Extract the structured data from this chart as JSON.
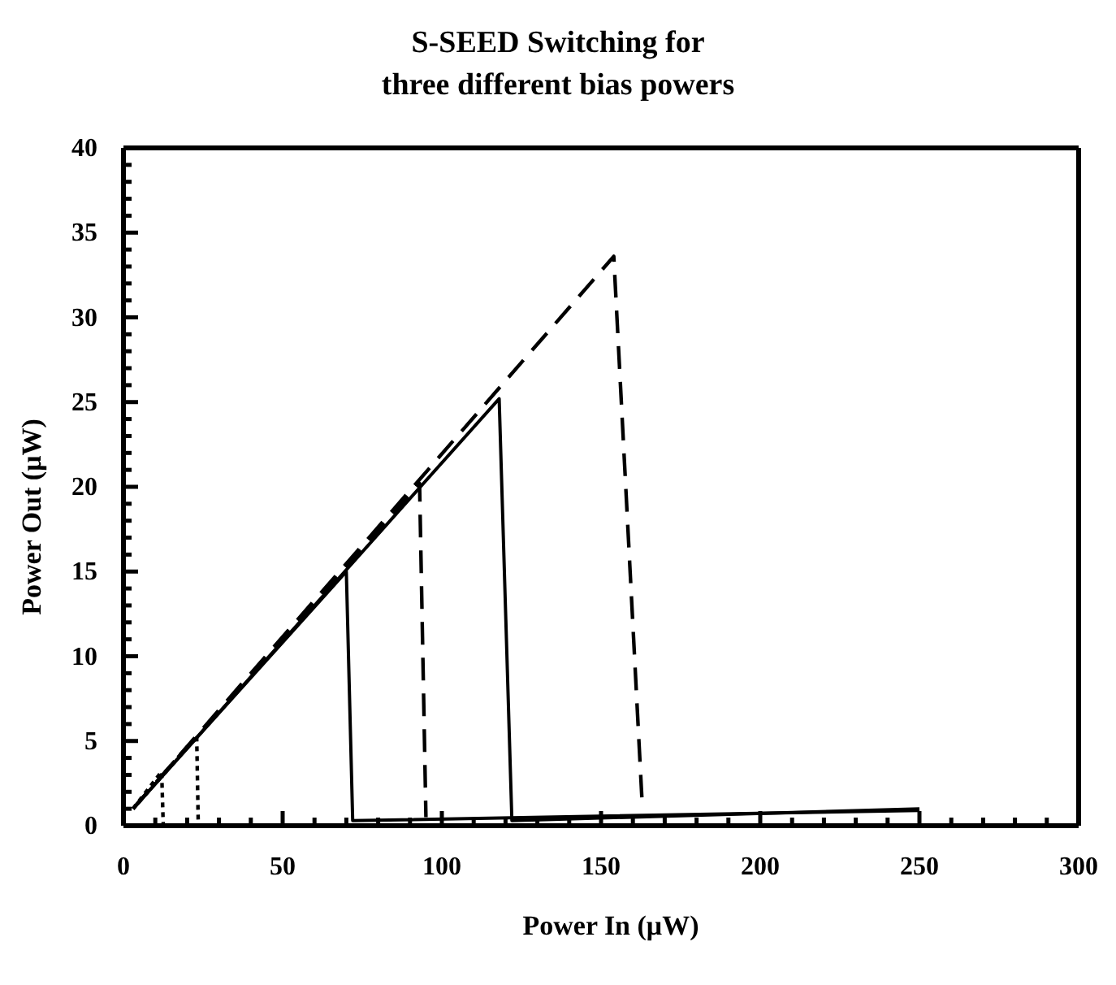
{
  "chart_data": {
    "type": "line",
    "title": "S-SEED Switching for\nthree different bias powers",
    "xlabel": "Power In (μW)",
    "ylabel": "Power Out (μW)",
    "xlim": [
      0,
      300
    ],
    "ylim": [
      0,
      40
    ],
    "xticks": [
      0,
      {
        "value": 10,
        "label": null
      },
      {
        "value": 20,
        "label": null
      },
      {
        "value": 30,
        "label": null
      },
      {
        "value": 40,
        "label": null
      },
      50,
      {
        "value": 60,
        "label": null
      },
      {
        "value": 70,
        "label": null
      },
      {
        "value": 80,
        "label": null
      },
      {
        "value": 90,
        "label": null
      },
      100,
      {
        "value": 110,
        "label": null
      },
      {
        "value": 120,
        "label": null
      },
      {
        "value": 130,
        "label": null
      },
      {
        "value": 140,
        "label": null
      },
      150,
      {
        "value": 160,
        "label": null
      },
      {
        "value": 170,
        "label": null
      },
      {
        "value": 180,
        "label": null
      },
      {
        "value": 190,
        "label": null
      },
      200,
      {
        "value": 210,
        "label": null
      },
      {
        "value": 220,
        "label": null
      },
      {
        "value": 230,
        "label": null
      },
      {
        "value": 240,
        "label": null
      },
      250,
      {
        "value": 260,
        "label": null
      },
      {
        "value": 270,
        "label": null
      },
      {
        "value": 280,
        "label": null
      },
      {
        "value": 290,
        "label": null
      },
      300
    ],
    "yticks": [
      0,
      {
        "value": 1,
        "label": null
      },
      {
        "value": 2,
        "label": null
      },
      {
        "value": 3,
        "label": null
      },
      {
        "value": 4,
        "label": null
      },
      5,
      {
        "value": 6,
        "label": null
      },
      {
        "value": 7,
        "label": null
      },
      {
        "value": 8,
        "label": null
      },
      {
        "value": 9,
        "label": null
      },
      10,
      {
        "value": 11,
        "label": null
      },
      {
        "value": 12,
        "label": null
      },
      {
        "value": 13,
        "label": null
      },
      {
        "value": 14,
        "label": null
      },
      15,
      {
        "value": 16,
        "label": null
      },
      {
        "value": 17,
        "label": null
      },
      {
        "value": 18,
        "label": null
      },
      {
        "value": 19,
        "label": null
      },
      20,
      {
        "value": 21,
        "label": null
      },
      {
        "value": 22,
        "label": null
      },
      {
        "value": 23,
        "label": null
      },
      {
        "value": 24,
        "label": null
      },
      25,
      {
        "value": 26,
        "label": null
      },
      {
        "value": 27,
        "label": null
      },
      {
        "value": 28,
        "label": null
      },
      {
        "value": 29,
        "label": null
      },
      30,
      {
        "value": 31,
        "label": null
      },
      {
        "value": 32,
        "label": null
      },
      {
        "value": 33,
        "label": null
      },
      {
        "value": 34,
        "label": null
      },
      35,
      {
        "value": 36,
        "label": null
      },
      {
        "value": 37,
        "label": null
      },
      {
        "value": 38,
        "label": null
      },
      {
        "value": 39,
        "label": null
      },
      40
    ],
    "marker": "none",
    "series": [
      {
        "color": "#000000",
        "line_style": "solid",
        "x": [
          3,
          70,
          72,
          250
        ],
        "values": [
          1,
          15,
          0.3,
          0.9
        ]
      },
      {
        "color": "#000000",
        "line_style": "solid",
        "x": [
          3,
          118,
          122,
          250
        ],
        "values": [
          1,
          25.2,
          0.3,
          1
        ]
      },
      {
        "color": "#000000",
        "line_style": "dashed",
        "x": [
          3,
          93,
          95
        ],
        "values": [
          1,
          20.2,
          0.5
        ]
      },
      {
        "color": "#000000",
        "line_style": "dashed",
        "x": [
          3,
          154,
          163
        ],
        "values": [
          1,
          33.6,
          1
        ]
      },
      {
        "color": "#000000",
        "line_style": "dotted",
        "x": [
          3,
          12,
          12.5
        ],
        "values": [
          1,
          3.2,
          0
        ]
      },
      {
        "color": "#000000",
        "line_style": "dotted",
        "x": [
          3,
          23,
          23.5
        ],
        "values": [
          1,
          5.3,
          0
        ]
      }
    ]
  }
}
